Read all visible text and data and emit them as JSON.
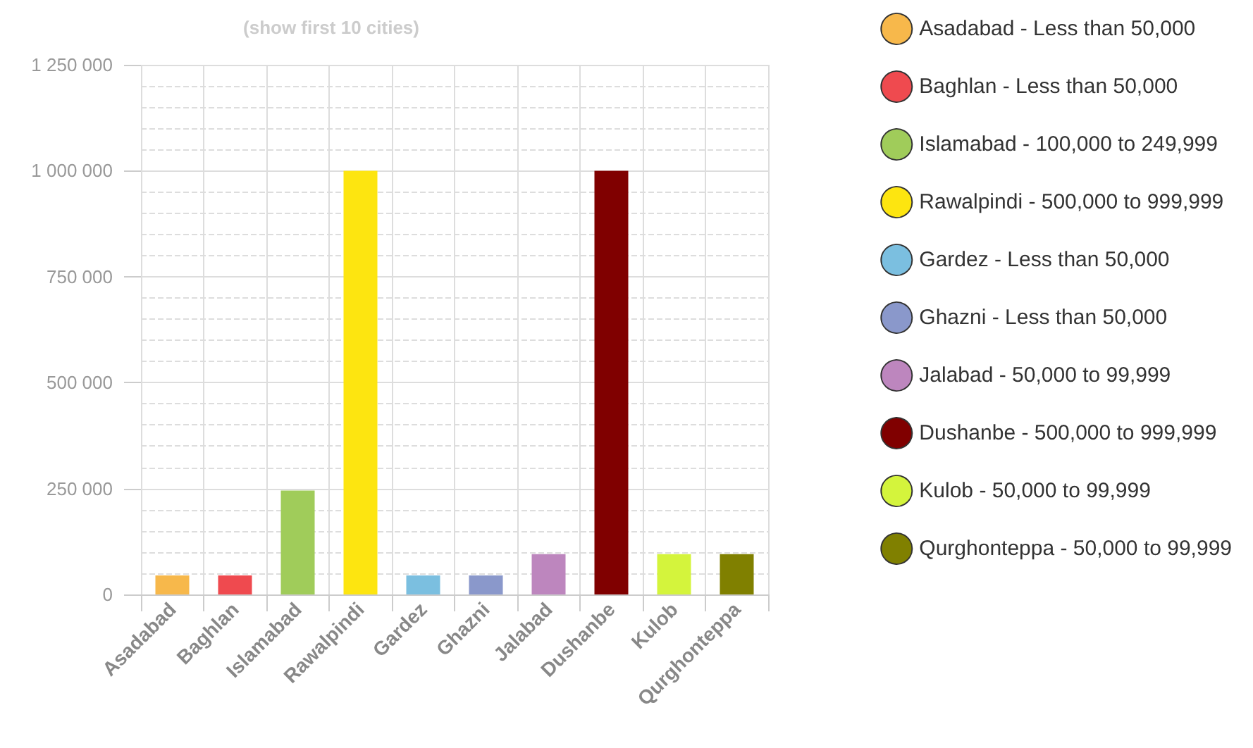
{
  "chart_data": {
    "type": "bar",
    "title": "(show first 10 cities)",
    "categories": [
      "Asadabad",
      "Baghlan",
      "Islamabad",
      "Rawalpindi",
      "Gardez",
      "Ghazni",
      "Jalabad",
      "Dushanbe",
      "Kulob",
      "Qurghonteppa"
    ],
    "series": [
      {
        "name": "Asadabad - Less than 50,000",
        "color": "#f7b84b",
        "values": [
          45000,
          null,
          null,
          null,
          null,
          null,
          null,
          null,
          null,
          null
        ]
      },
      {
        "name": "Baghlan - Less than 50,000",
        "color": "#ef4a4f",
        "values": [
          null,
          45000,
          null,
          null,
          null,
          null,
          null,
          null,
          null,
          null
        ]
      },
      {
        "name": "Islamabad - 100,000 to 249,999",
        "color": "#a0cc5a",
        "values": [
          null,
          null,
          245000,
          null,
          null,
          null,
          null,
          null,
          null,
          null
        ]
      },
      {
        "name": "Rawalpindi - 500,000 to 999,999",
        "color": "#fde510",
        "values": [
          null,
          null,
          null,
          1000000,
          null,
          null,
          null,
          null,
          null,
          null
        ]
      },
      {
        "name": "Gardez - Less than 50,000",
        "color": "#7bbfe0",
        "values": [
          null,
          null,
          null,
          null,
          45000,
          null,
          null,
          null,
          null,
          null
        ]
      },
      {
        "name": "Ghazni - Less than 50,000",
        "color": "#8a98cb",
        "values": [
          null,
          null,
          null,
          null,
          null,
          45000,
          null,
          null,
          null,
          null
        ]
      },
      {
        "name": "Jalabad - 50,000 to 99,999",
        "color": "#bd86be",
        "values": [
          null,
          null,
          null,
          null,
          null,
          null,
          95000,
          null,
          null,
          null
        ]
      },
      {
        "name": "Dushanbe - 500,000 to 999,999",
        "color": "#800000",
        "values": [
          null,
          null,
          null,
          null,
          null,
          null,
          null,
          1000000,
          null,
          null
        ]
      },
      {
        "name": "Kulob - 50,000 to 99,999",
        "color": "#d4f43c",
        "values": [
          null,
          null,
          null,
          null,
          null,
          null,
          null,
          null,
          95000,
          null
        ]
      },
      {
        "name": "Qurghonteppa - 50,000 to 99,999",
        "color": "#808000",
        "values": [
          null,
          null,
          null,
          null,
          null,
          null,
          null,
          null,
          null,
          95000
        ]
      }
    ],
    "ylim": [
      0,
      1250000
    ],
    "yticks": [
      0,
      250000,
      500000,
      750000,
      1000000,
      1250000
    ],
    "grid": true,
    "legend": "right"
  }
}
